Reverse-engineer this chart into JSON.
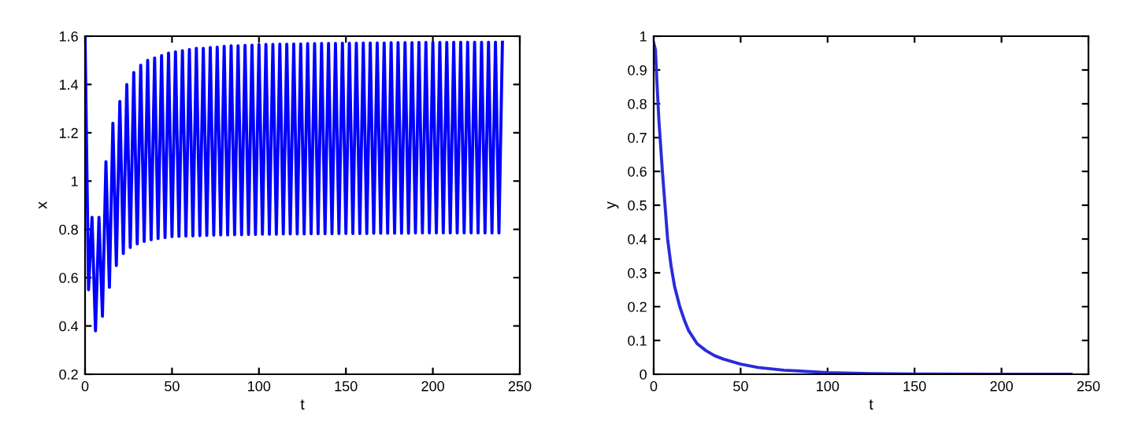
{
  "chart_data": [
    {
      "type": "line",
      "xlabel": "t",
      "ylabel": "x",
      "xlim": [
        0,
        250
      ],
      "ylim": [
        0.2,
        1.6
      ],
      "xticks": [
        0,
        50,
        100,
        150,
        200,
        250
      ],
      "yticks": [
        0.2,
        0.4,
        0.6,
        0.8,
        {
          "value": 1,
          "label": "1"
        },
        1.2,
        1.4,
        1.6
      ],
      "series": [
        {
          "color": "#0000ff",
          "x": [
            0,
            2,
            4,
            6,
            8,
            10,
            12,
            14,
            16,
            18,
            20,
            22,
            24,
            26,
            28,
            30,
            32,
            34,
            36,
            38,
            40,
            42,
            44,
            46,
            48,
            50,
            52,
            54,
            56,
            58,
            60,
            62,
            64,
            66,
            68,
            70,
            72,
            74,
            76,
            78,
            80,
            82,
            84,
            86,
            88,
            90,
            92,
            94,
            96,
            98,
            100,
            102,
            104,
            106,
            108,
            110,
            112,
            114,
            116,
            118,
            120,
            122,
            124,
            126,
            128,
            130,
            132,
            134,
            136,
            138,
            140,
            142,
            144,
            146,
            148,
            150,
            152,
            154,
            156,
            158,
            160,
            162,
            164,
            166,
            168,
            170,
            172,
            174,
            176,
            178,
            180,
            182,
            184,
            186,
            188,
            190,
            192,
            194,
            196,
            198,
            200,
            202,
            204,
            206,
            208,
            210,
            212,
            214,
            216,
            218,
            220,
            222,
            224,
            226,
            228,
            230,
            232,
            234,
            236,
            238,
            240
          ],
          "values": [
            1.6,
            0.55,
            0.85,
            0.38,
            0.85,
            0.44,
            1.08,
            0.56,
            1.24,
            0.65,
            1.33,
            0.7,
            1.4,
            0.725,
            1.45,
            0.74,
            1.48,
            0.75,
            1.5,
            0.757,
            1.51,
            0.762,
            1.52,
            0.766,
            1.53,
            0.77,
            1.535,
            0.771,
            1.54,
            0.772,
            1.545,
            0.773,
            1.55,
            0.774,
            1.55,
            0.775,
            1.553,
            0.776,
            1.555,
            0.777,
            1.558,
            0.777,
            1.56,
            0.778,
            1.56,
            0.778,
            1.562,
            0.779,
            1.563,
            0.779,
            1.565,
            0.78,
            1.566,
            0.78,
            1.566,
            0.78,
            1.567,
            0.781,
            1.567,
            0.781,
            1.568,
            0.781,
            1.568,
            0.781,
            1.569,
            0.782,
            1.569,
            0.782,
            1.57,
            0.782,
            1.57,
            0.782,
            1.57,
            0.783,
            1.571,
            0.783,
            1.571,
            0.783,
            1.571,
            0.783,
            1.572,
            0.783,
            1.572,
            0.784,
            1.572,
            0.784,
            1.572,
            0.784,
            1.573,
            0.784,
            1.573,
            0.784,
            1.573,
            0.784,
            1.573,
            0.785,
            1.574,
            0.785,
            1.574,
            0.785,
            1.574,
            0.785,
            1.574,
            0.785,
            1.574,
            0.785,
            1.575,
            0.785,
            1.575,
            0.785,
            1.575,
            0.785,
            1.575,
            0.785,
            1.575,
            0.785,
            1.575,
            0.785,
            1.575,
            0.785,
            1.575
          ]
        }
      ]
    },
    {
      "type": "line",
      "xlabel": "t",
      "ylabel": "y",
      "xlim": [
        0,
        250
      ],
      "ylim": [
        0,
        1
      ],
      "xticks": [
        0,
        50,
        100,
        150,
        200,
        250
      ],
      "yticks": [
        0,
        0.1,
        0.2,
        0.3,
        0.4,
        0.5,
        0.6,
        0.7,
        0.8,
        0.9,
        1
      ],
      "series": [
        {
          "color": "#2b2bd9",
          "x": [
            0,
            1,
            2,
            3,
            5,
            8,
            10,
            12,
            15,
            18,
            20,
            25,
            30,
            35,
            40,
            50,
            60,
            75,
            100,
            125,
            150,
            200,
            240
          ],
          "values": [
            0.98,
            0.96,
            0.85,
            0.75,
            0.6,
            0.4,
            0.32,
            0.26,
            0.2,
            0.155,
            0.13,
            0.09,
            0.07,
            0.055,
            0.045,
            0.03,
            0.02,
            0.012,
            0.005,
            0.002,
            0.001,
            0,
            0
          ]
        }
      ]
    }
  ]
}
